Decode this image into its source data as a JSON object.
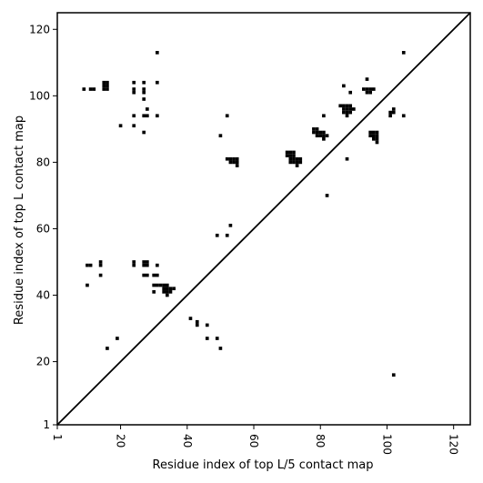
{
  "chart_data": {
    "type": "scatter",
    "title": "",
    "xlabel": "Residue index of top L/5 contact map",
    "ylabel": "Residue index of top L contact map",
    "xlim": [
      1,
      125
    ],
    "ylim": [
      1,
      125
    ],
    "xticks": [
      1,
      20,
      40,
      60,
      80,
      100,
      120
    ],
    "yticks": [
      1,
      20,
      40,
      60,
      80,
      100,
      120
    ],
    "marker": "filled-square",
    "grid": false,
    "diagonal_line": true,
    "colors": {
      "points": "#000000",
      "line": "#000000",
      "axes": "#000000",
      "background": "#ffffff"
    },
    "upper_triangle_points": [
      [
        9,
        102
      ],
      [
        11,
        102
      ],
      [
        12,
        102
      ],
      [
        15,
        102
      ],
      [
        15,
        103
      ],
      [
        15,
        104
      ],
      [
        16,
        102
      ],
      [
        16,
        103
      ],
      [
        16,
        104
      ],
      [
        20,
        91
      ],
      [
        24,
        101
      ],
      [
        24,
        102
      ],
      [
        24,
        104
      ],
      [
        24,
        94
      ],
      [
        24,
        91
      ],
      [
        27,
        104
      ],
      [
        27,
        102
      ],
      [
        27,
        101
      ],
      [
        27,
        99
      ],
      [
        27,
        94
      ],
      [
        28,
        94
      ],
      [
        28,
        96
      ],
      [
        27,
        89
      ],
      [
        31,
        113
      ],
      [
        31,
        104
      ],
      [
        31,
        94
      ],
      [
        50,
        88
      ],
      [
        52,
        94
      ],
      [
        52,
        81
      ],
      [
        53,
        80
      ],
      [
        53,
        81
      ],
      [
        54,
        80
      ],
      [
        54,
        81
      ],
      [
        55,
        80
      ],
      [
        55,
        81
      ],
      [
        55,
        79
      ],
      [
        70,
        82
      ],
      [
        70,
        83
      ],
      [
        71,
        80
      ],
      [
        71,
        81
      ],
      [
        71,
        82
      ],
      [
        71,
        83
      ],
      [
        72,
        80
      ],
      [
        72,
        81
      ],
      [
        72,
        82
      ],
      [
        72,
        83
      ],
      [
        73,
        80
      ],
      [
        73,
        81
      ],
      [
        74,
        80
      ],
      [
        74,
        81
      ],
      [
        73,
        79
      ],
      [
        78,
        89
      ],
      [
        78,
        90
      ],
      [
        79,
        89
      ],
      [
        79,
        90
      ],
      [
        79,
        88
      ],
      [
        80,
        88
      ],
      [
        80,
        89
      ],
      [
        81,
        87
      ],
      [
        81,
        88
      ],
      [
        81,
        89
      ],
      [
        82,
        88
      ],
      [
        81,
        94
      ],
      [
        82,
        70
      ],
      [
        86,
        97
      ],
      [
        87,
        97
      ],
      [
        87,
        96
      ],
      [
        87,
        95
      ],
      [
        88,
        97
      ],
      [
        88,
        96
      ],
      [
        88,
        95
      ],
      [
        88,
        94
      ],
      [
        89,
        97
      ],
      [
        89,
        96
      ],
      [
        89,
        95
      ],
      [
        90,
        96
      ],
      [
        87,
        103
      ],
      [
        89,
        101
      ],
      [
        88,
        81
      ],
      [
        93,
        102
      ],
      [
        94,
        102
      ],
      [
        95,
        102
      ],
      [
        94,
        101
      ],
      [
        95,
        101
      ],
      [
        96,
        102
      ],
      [
        94,
        105
      ],
      [
        95,
        89
      ],
      [
        95,
        88
      ],
      [
        96,
        89
      ],
      [
        96,
        88
      ],
      [
        96,
        87
      ],
      [
        97,
        89
      ],
      [
        97,
        88
      ],
      [
        97,
        87
      ],
      [
        97,
        86
      ],
      [
        101,
        94
      ],
      [
        101,
        95
      ],
      [
        102,
        95
      ],
      [
        102,
        96
      ],
      [
        105,
        113
      ],
      [
        105,
        94
      ]
    ],
    "lower_triangle_points": [
      [
        10,
        49
      ],
      [
        11,
        49
      ],
      [
        10,
        43
      ],
      [
        14,
        50
      ],
      [
        14,
        49
      ],
      [
        14,
        46
      ],
      [
        16,
        24
      ],
      [
        19,
        27
      ],
      [
        24,
        50
      ],
      [
        24,
        49
      ],
      [
        27,
        50
      ],
      [
        27,
        49
      ],
      [
        28,
        50
      ],
      [
        28,
        49
      ],
      [
        27,
        46
      ],
      [
        28,
        46
      ],
      [
        30,
        46
      ],
      [
        31,
        46
      ],
      [
        31,
        49
      ],
      [
        30,
        41
      ],
      [
        30,
        43
      ],
      [
        31,
        43
      ],
      [
        32,
        43
      ],
      [
        33,
        43
      ],
      [
        34,
        43
      ],
      [
        33,
        42
      ],
      [
        34,
        42
      ],
      [
        35,
        42
      ],
      [
        36,
        42
      ],
      [
        33,
        41
      ],
      [
        34,
        41
      ],
      [
        35,
        41
      ],
      [
        34,
        40
      ],
      [
        41,
        33
      ],
      [
        43,
        32
      ],
      [
        43,
        31
      ],
      [
        46,
        31
      ],
      [
        46,
        27
      ],
      [
        49,
        27
      ],
      [
        49,
        58
      ],
      [
        50,
        24
      ],
      [
        52,
        58
      ],
      [
        53,
        61
      ],
      [
        102,
        16
      ]
    ]
  }
}
